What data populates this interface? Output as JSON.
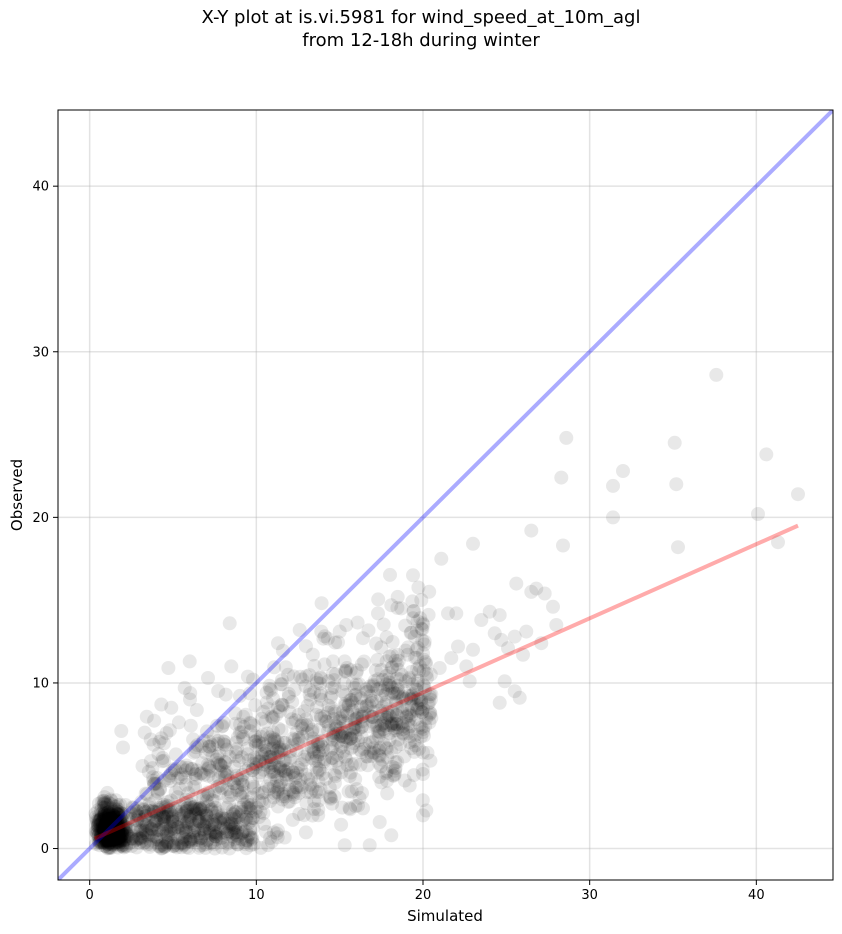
{
  "title_line1": "X-Y plot at is.vi.5981 for wind_speed_at_10m_agl",
  "title_line2": "from 12-18h during winter",
  "chart_data": {
    "type": "scatter",
    "xlabel": "Simulated",
    "ylabel": "Observed",
    "xlim": [
      -1.9,
      44.6
    ],
    "ylim": [
      -1.9,
      44.6
    ],
    "xticks": [
      0,
      10,
      20,
      30,
      40
    ],
    "yticks": [
      0,
      10,
      20,
      30,
      40
    ],
    "grid": true,
    "series": [
      {
        "marker_color": "#000000",
        "marker_alpha": 0.09,
        "points_high": [
          [
            37.6,
            28.6
          ],
          [
            28.6,
            24.8
          ],
          [
            35.1,
            24.5
          ],
          [
            40.6,
            23.8
          ],
          [
            32.0,
            22.8
          ],
          [
            28.3,
            22.4
          ],
          [
            35.2,
            22.0
          ],
          [
            31.4,
            21.9
          ],
          [
            42.5,
            21.4
          ],
          [
            40.1,
            20.2
          ],
          [
            31.4,
            20.0
          ],
          [
            26.5,
            19.2
          ],
          [
            41.3,
            18.5
          ],
          [
            23.0,
            18.4
          ],
          [
            28.4,
            18.3
          ],
          [
            35.3,
            18.2
          ],
          [
            21.1,
            17.5
          ],
          [
            25.6,
            16.0
          ],
          [
            26.8,
            15.7
          ],
          [
            26.5,
            15.5
          ],
          [
            27.3,
            15.4
          ],
          [
            24.0,
            14.3
          ],
          [
            21.5,
            14.2
          ],
          [
            22.0,
            14.2
          ],
          [
            24.6,
            14.1
          ],
          [
            27.8,
            14.6
          ],
          [
            28.0,
            13.5
          ],
          [
            25.5,
            12.8
          ],
          [
            24.7,
            12.6
          ],
          [
            23.0,
            12.0
          ],
          [
            22.1,
            12.2
          ],
          [
            21.7,
            11.5
          ],
          [
            26.0,
            11.7
          ],
          [
            27.1,
            12.4
          ],
          [
            25.5,
            9.5
          ],
          [
            25.8,
            9.1
          ],
          [
            24.6,
            8.8
          ],
          [
            24.9,
            10.1
          ],
          [
            22.8,
            10.1
          ],
          [
            21.0,
            10.9
          ],
          [
            25.1,
            12.1
          ],
          [
            23.5,
            13.8
          ],
          [
            26.2,
            13.1
          ],
          [
            24.3,
            13.0
          ],
          [
            22.6,
            11.0
          ]
        ],
        "points_mid": [
          [
            8.4,
            13.6
          ],
          [
            6.0,
            11.3
          ],
          [
            8.5,
            11.0
          ],
          [
            12.6,
            13.2
          ],
          [
            15.4,
            13.5
          ],
          [
            17.3,
            14.2
          ],
          [
            18.7,
            14.5
          ],
          [
            13.9,
            13.1
          ],
          [
            11.3,
            12.4
          ],
          [
            16.4,
            12.7
          ],
          [
            19.5,
            12.8
          ],
          [
            20.1,
            12.5
          ],
          [
            18.0,
            11.6
          ],
          [
            14.6,
            11.3
          ],
          [
            9.8,
            10.2
          ],
          [
            7.1,
            10.3
          ],
          [
            5.7,
            9.7
          ],
          [
            4.9,
            8.5
          ],
          [
            4.3,
            8.7
          ],
          [
            3.3,
            7.0
          ],
          [
            1.9,
            7.1
          ],
          [
            2.0,
            6.1
          ],
          [
            20.0,
            4.5
          ],
          [
            19.2,
            3.8
          ],
          [
            20.2,
            2.3
          ],
          [
            20.0,
            2.0
          ],
          [
            18.1,
            0.8
          ],
          [
            15.3,
            0.2
          ],
          [
            16.8,
            0.2
          ],
          [
            17.4,
            1.6
          ],
          [
            10.7,
            0.2
          ],
          [
            6.8,
            0.2
          ],
          [
            3.6,
            0.1
          ],
          [
            4.3,
            0.0
          ],
          [
            2.5,
            0.6
          ],
          [
            19.9,
            7.3
          ],
          [
            19.3,
            9.0
          ],
          [
            18.5,
            10.8
          ],
          [
            16.0,
            10.6
          ],
          [
            13.0,
            10.4
          ],
          [
            15.3,
            11.3
          ],
          [
            17.0,
            9.8
          ],
          [
            18.8,
            7.2
          ],
          [
            20.0,
            5.8
          ],
          [
            19.5,
            6.5
          ]
        ],
        "cluster_low": {
          "x_range": [
            0.3,
            3.5
          ],
          "y_range": [
            0.0,
            4.2
          ],
          "count": 520
        },
        "cluster_band": {
          "x_range": [
            2.5,
            10.0
          ],
          "y_range": [
            0.0,
            2.5
          ],
          "count": 260
        },
        "cluster_body": {
          "x_range": [
            3.0,
            20.5
          ],
          "y_center_slope": 0.42,
          "y_spread": 4.5,
          "count": 1050
        }
      }
    ],
    "reference_lines": [
      {
        "name": "one-to-one",
        "color": "#0000ff",
        "alpha": 0.33,
        "x": [
          -1.9,
          44.6
        ],
        "y": [
          -1.9,
          44.6
        ]
      },
      {
        "name": "fit",
        "color": "#ff0000",
        "alpha": 0.33,
        "x": [
          0.3,
          42.5
        ],
        "y": [
          0.6,
          19.5
        ]
      }
    ]
  }
}
